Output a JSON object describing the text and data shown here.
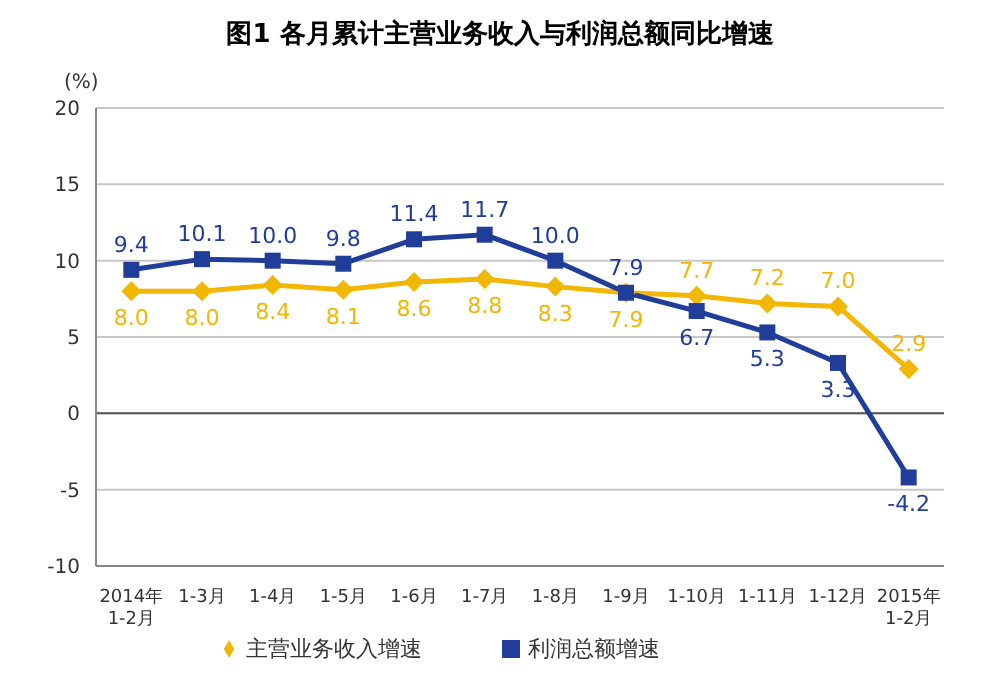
{
  "chart_data": {
    "type": "line",
    "title": "图1 各月累计主营业务收入与利润总额同比增速",
    "ylabel": "(%)",
    "categories": [
      "2014年\n1-2月",
      "1-3月",
      "1-4月",
      "1-5月",
      "1-6月",
      "1-7月",
      "1-8月",
      "1-9月",
      "1-10月",
      "1-11月",
      "1-12月",
      "2015年\n1-2月"
    ],
    "series": [
      {
        "name": "主营业务收入增速",
        "color": "#f2b705",
        "marker": "diamond",
        "values": [
          8.0,
          8.0,
          8.4,
          8.1,
          8.6,
          8.8,
          8.3,
          7.9,
          7.7,
          7.2,
          7.0,
          2.9
        ],
        "value_labels": [
          "8.0",
          "8.0",
          "8.4",
          "8.1",
          "8.6",
          "8.8",
          "8.3",
          "7.9",
          "7.7",
          "7.2",
          "7.0",
          "2.9"
        ]
      },
      {
        "name": "利润总额增速",
        "color": "#1f3d99",
        "marker": "square",
        "values": [
          9.4,
          10.1,
          10.0,
          9.8,
          11.4,
          11.7,
          10.0,
          7.9,
          6.7,
          5.3,
          3.3,
          -4.2
        ],
        "value_labels": [
          "9.4",
          "10.1",
          "10.0",
          "9.8",
          "11.4",
          "11.7",
          "10.0",
          "7.9",
          "6.7",
          "5.3",
          "3.3",
          "-4.2"
        ]
      }
    ],
    "ylim": [
      -10,
      20
    ],
    "yticks": [
      -10,
      -5,
      0,
      5,
      10,
      15,
      20
    ],
    "grid": "y",
    "legend": "bottom",
    "line_style": "solid"
  }
}
